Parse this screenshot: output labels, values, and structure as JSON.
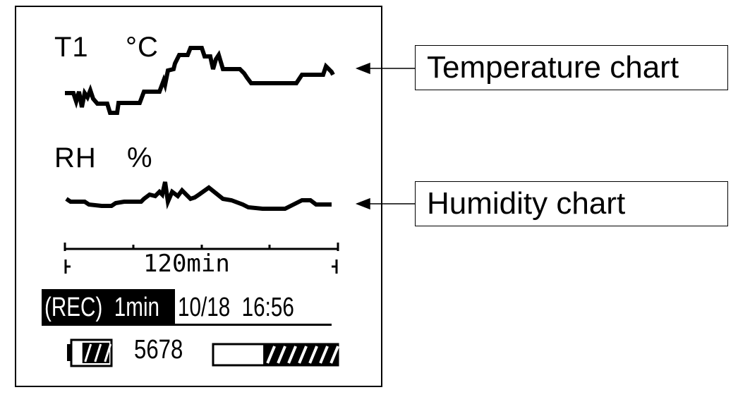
{
  "temperature": {
    "channel_label": "T1",
    "unit_label": "°C",
    "callout": "Temperature chart"
  },
  "humidity": {
    "channel_label": "RH",
    "unit_label": "%",
    "callout": "Humidity chart"
  },
  "time_scale": {
    "label": "120min"
  },
  "status": {
    "recording_label": "(REC)  1min",
    "date_time": "10/18  16:56",
    "record_count": "5678",
    "battery_level": 0.75,
    "memory_used": 0.6
  }
}
